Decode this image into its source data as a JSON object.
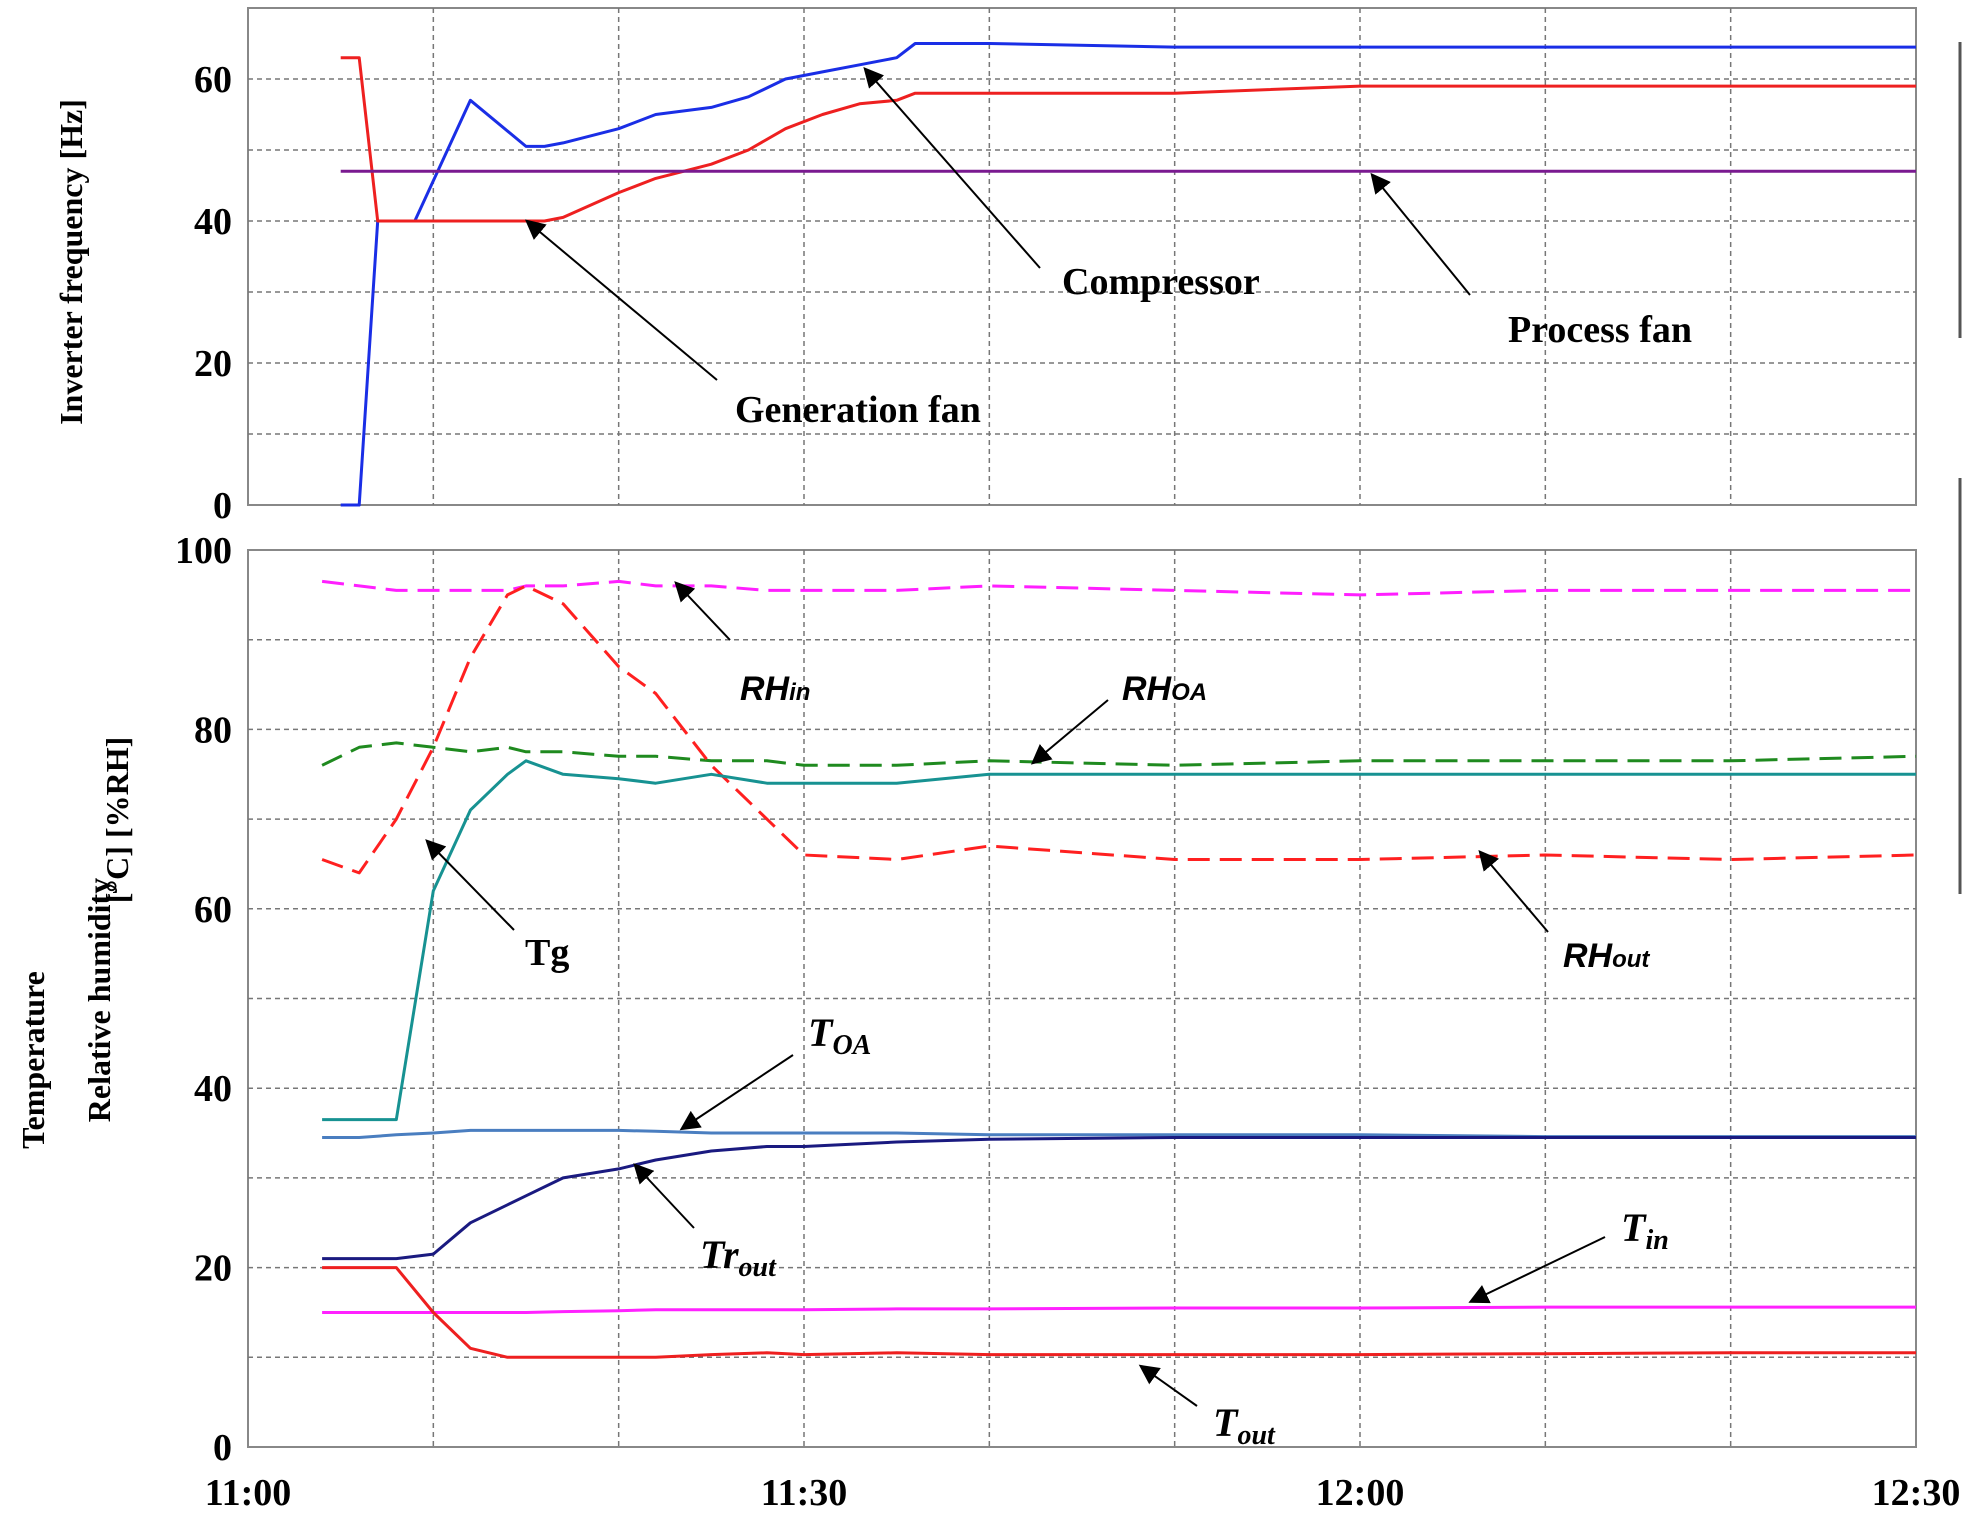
{
  "chart_data": [
    {
      "type": "line",
      "ylabel": "Inverter  frequency   [Hz]",
      "ylim": [
        0,
        70
      ],
      "yticks": [
        "0",
        "20",
        "40",
        "60"
      ],
      "x": [
        "11:05",
        "11:06",
        "11:07",
        "11:09",
        "11:12",
        "11:15",
        "11:16",
        "11:17",
        "11:20",
        "11:22",
        "11:25",
        "11:27",
        "11:29",
        "11:31",
        "11:33",
        "11:35",
        "11:36",
        "11:40",
        "11:50",
        "12:00",
        "12:10",
        "12:20",
        "12:30"
      ],
      "series": [
        {
          "name": "Compressor",
          "color": "#1a2ee6",
          "values": [
            0,
            0,
            40,
            40,
            57,
            50.5,
            50.5,
            51,
            53,
            55,
            56,
            57.5,
            60,
            61,
            62,
            63,
            65,
            65,
            64.5,
            64.5,
            64.5,
            64.5,
            64.5
          ]
        },
        {
          "name": "Generation  fan",
          "color": "#ee2020",
          "values": [
            63,
            63,
            40,
            40,
            40,
            40,
            40,
            40.5,
            44,
            46,
            48,
            50,
            53,
            55,
            56.5,
            57,
            58,
            58,
            58,
            59,
            59,
            59,
            59
          ]
        },
        {
          "name": "Process fan",
          "color": "#7a1a90",
          "values": [
            47,
            47,
            47,
            47,
            47,
            47,
            47,
            47,
            47,
            47,
            47,
            47,
            47,
            47,
            47,
            47,
            47,
            47,
            47,
            47,
            47,
            47,
            47
          ]
        }
      ]
    },
    {
      "type": "line",
      "ylabel": "Temperature",
      "ylabel2": "Relative humidity",
      "ylabel3": "[°C]     [%RH]",
      "ylim": [
        0,
        100
      ],
      "yticks": [
        "0",
        "20",
        "40",
        "60",
        "80",
        "100"
      ],
      "xticks": [
        "11:00",
        "11:30",
        "12:00",
        "12:30"
      ],
      "x": [
        "11:04",
        "11:06",
        "11:08",
        "11:10",
        "11:12",
        "11:14",
        "11:15",
        "11:17",
        "11:20",
        "11:22",
        "11:25",
        "11:28",
        "11:30",
        "11:35",
        "11:40",
        "11:50",
        "12:00",
        "12:10",
        "12:20",
        "12:30"
      ],
      "series": [
        {
          "name": "RHin",
          "color": "#ff1fff",
          "dash": true,
          "values": [
            96.5,
            96,
            95.5,
            95.5,
            95.5,
            95.5,
            96,
            96,
            96.5,
            96,
            96,
            95.5,
            95.5,
            95.5,
            96,
            95.5,
            95,
            95.5,
            95.5,
            95.5
          ]
        },
        {
          "name": "RHOA",
          "color": "#1f8a1f",
          "dash": true,
          "values": [
            76,
            78,
            78.5,
            78,
            77.5,
            78,
            77.5,
            77.5,
            77,
            77,
            76.5,
            76.5,
            76,
            76,
            76.5,
            76,
            76.5,
            76.5,
            76.5,
            77
          ]
        },
        {
          "name": "RHout",
          "color": "#ff2020",
          "dash": true,
          "values": [
            65.5,
            64,
            70,
            78,
            88,
            95,
            96,
            94,
            87,
            84,
            76,
            70,
            66,
            65.5,
            67,
            65.5,
            65.5,
            66,
            65.5,
            66
          ]
        },
        {
          "name": "Tg",
          "color": "#179292",
          "values": [
            36.5,
            36.5,
            36.5,
            62,
            71,
            75,
            76.5,
            75,
            74.5,
            74,
            75,
            74,
            74,
            74,
            75,
            75,
            75,
            75,
            75,
            75
          ]
        },
        {
          "name": "TOA",
          "color": "#4a7ec0",
          "values": [
            34.5,
            34.5,
            34.8,
            35,
            35.3,
            35.3,
            35.3,
            35.3,
            35.3,
            35.2,
            35,
            35,
            35,
            35,
            34.8,
            34.8,
            34.8,
            34.6,
            34.6,
            34.6
          ]
        },
        {
          "name": "Trout",
          "color": "#1a1a80",
          "values": [
            21,
            21,
            21,
            21.5,
            25,
            27,
            28,
            30,
            31,
            32,
            33,
            33.5,
            33.5,
            34,
            34.3,
            34.5,
            34.5,
            34.5,
            34.5,
            34.5
          ]
        },
        {
          "name": "Tin",
          "color": "#ff22ff",
          "values": [
            15,
            15,
            15,
            15,
            15,
            15,
            15,
            15.1,
            15.2,
            15.3,
            15.3,
            15.3,
            15.3,
            15.4,
            15.4,
            15.5,
            15.5,
            15.6,
            15.6,
            15.6
          ]
        },
        {
          "name": "Tout",
          "color": "#ee2020",
          "values": [
            20,
            20,
            20,
            15,
            11,
            10,
            10,
            10,
            10,
            10,
            10.3,
            10.5,
            10.3,
            10.5,
            10.3,
            10.3,
            10.3,
            10.4,
            10.5,
            10.5
          ]
        }
      ]
    }
  ],
  "labels": {
    "compressor": "Compressor",
    "generation_fan": "Generation  fan",
    "process_fan": "Process fan",
    "tg": "Tg",
    "rhin_main": "RH",
    "rhin_sub": "in",
    "rhoa_main": "RH",
    "rhoa_sub": "OA",
    "rhout_main": "RH",
    "rhout_sub": "out",
    "toa_main": "T",
    "toa_sub": "OA",
    "trout_main": "Tr",
    "trout_sub": "out",
    "tin_main": "T",
    "tin_sub": "in",
    "tout_main": "T",
    "tout_sub": "out"
  }
}
